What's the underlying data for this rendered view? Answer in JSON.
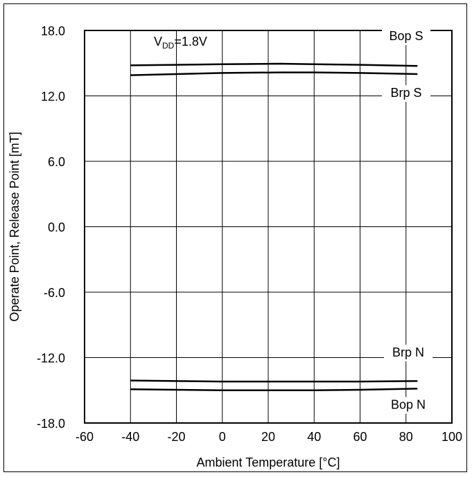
{
  "chart_data": {
    "type": "line",
    "xlabel": "Ambient Temperature [°C]",
    "ylabel": "Operate Point, Release Point [mT]",
    "xlim": [
      -60,
      100
    ],
    "ylim": [
      -18.0,
      18.0
    ],
    "x_ticks": [
      "-60",
      "-40",
      "-20",
      "0",
      "20",
      "40",
      "60",
      "80",
      "100"
    ],
    "y_ticks": [
      "18.0",
      "12.0",
      "6.0",
      "0.0",
      "-6.0",
      "-12.0",
      "-18.0"
    ],
    "grid": true,
    "annotation": {
      "prefix": "V",
      "subscript": "DD",
      "suffix": "=1.8V"
    },
    "series": [
      {
        "name": "Bop S",
        "x": [
          -40,
          -20,
          0,
          25,
          40,
          60,
          85
        ],
        "y": [
          14.8,
          14.85,
          14.9,
          14.95,
          14.9,
          14.85,
          14.75
        ]
      },
      {
        "name": "Brp S",
        "x": [
          -40,
          -20,
          0,
          25,
          40,
          60,
          85
        ],
        "y": [
          13.9,
          14.0,
          14.1,
          14.15,
          14.15,
          14.1,
          14.0
        ]
      },
      {
        "name": "Brp N",
        "x": [
          -40,
          -20,
          0,
          25,
          40,
          60,
          85
        ],
        "y": [
          -14.1,
          -14.15,
          -14.2,
          -14.2,
          -14.2,
          -14.2,
          -14.15
        ]
      },
      {
        "name": "Bop N",
        "x": [
          -40,
          -20,
          0,
          25,
          40,
          60,
          85
        ],
        "y": [
          -14.9,
          -14.95,
          -15.0,
          -15.0,
          -15.0,
          -14.95,
          -14.85
        ]
      }
    ],
    "line_color": "#000000"
  }
}
